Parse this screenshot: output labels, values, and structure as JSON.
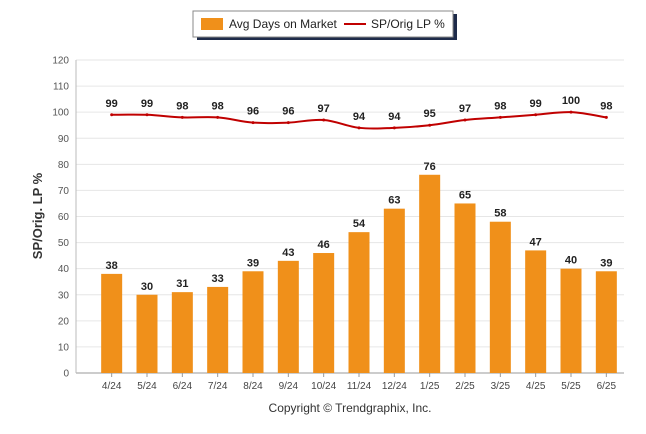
{
  "chart_data": {
    "type": "bar",
    "categories": [
      "4/24",
      "5/24",
      "6/24",
      "7/24",
      "8/24",
      "9/24",
      "10/24",
      "11/24",
      "12/24",
      "1/25",
      "2/25",
      "3/25",
      "4/25",
      "5/25",
      "6/25"
    ],
    "series": [
      {
        "name": "Avg Days on Market",
        "type": "bar",
        "color": "#F0901A",
        "values": [
          38,
          30,
          31,
          33,
          39,
          43,
          46,
          54,
          63,
          76,
          65,
          58,
          47,
          40,
          39
        ]
      },
      {
        "name": "SP/Orig LP %",
        "type": "line",
        "color": "#C00000",
        "values": [
          99,
          99,
          98,
          98,
          96,
          96,
          97,
          94,
          94,
          95,
          97,
          98,
          99,
          100,
          98
        ]
      }
    ],
    "ylabel": "SP/Orig. LP %",
    "ylim": [
      0,
      120
    ],
    "yticks": [
      0,
      10,
      20,
      30,
      40,
      50,
      60,
      70,
      80,
      90,
      100,
      110,
      120
    ],
    "grid": true,
    "legend_position": "top-center",
    "footer": "Copyright © Trendgraphix, Inc."
  }
}
